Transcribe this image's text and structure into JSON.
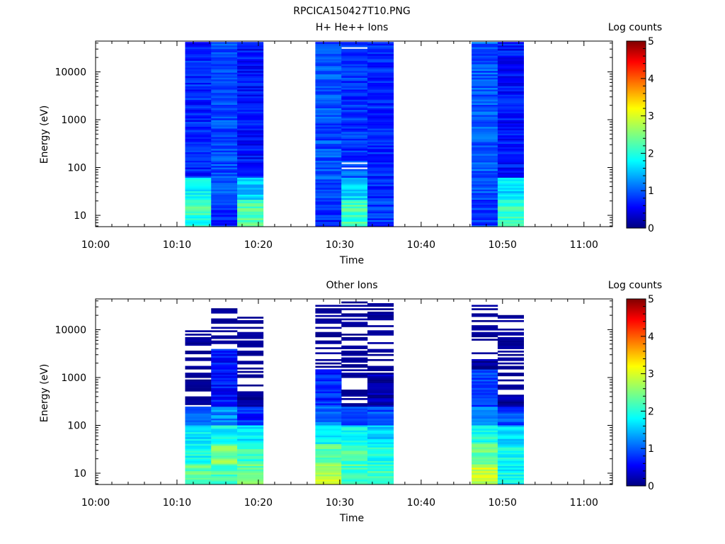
{
  "figure": {
    "title": "RPCICA150427T10.PNG"
  },
  "chart_data": [
    {
      "type": "heatmap",
      "title": "H+ He++ Ions",
      "xlabel": "Time",
      "ylabel": "Energy (eV)",
      "x_ticks": [
        "10:00",
        "10:10",
        "10:20",
        "10:30",
        "10:40",
        "10:50",
        "11:00"
      ],
      "x_range_min": [
        0,
        63.5
      ],
      "y_ticks": [
        "10",
        "100",
        "1000",
        "10000"
      ],
      "y_scale": "log",
      "y_range_ev": [
        5.8,
        44000
      ],
      "colorbar": {
        "label": "Log counts",
        "ticks": [
          "0",
          "1",
          "2",
          "3",
          "4",
          "5"
        ],
        "range": [
          0,
          5
        ]
      },
      "columns": [
        {
          "start": 11.0,
          "end": 14.2,
          "seed": 11,
          "sections": [
            [
              5.8,
              10,
              2.0
            ],
            [
              10,
              22,
              2.2
            ],
            [
              22,
              60,
              1.9
            ],
            [
              60,
              44000,
              0.8
            ]
          ],
          "gaps": []
        },
        {
          "start": 14.2,
          "end": 17.4,
          "seed": 12,
          "sections": [
            [
              5.8,
              22,
              0.8
            ],
            [
              22,
              45000,
              1.0
            ]
          ],
          "gaps": []
        },
        {
          "start": 17.4,
          "end": 20.6,
          "seed": 13,
          "sections": [
            [
              5.8,
              22,
              2.3
            ],
            [
              22,
              60,
              1.6
            ],
            [
              60,
              44000,
              0.7
            ]
          ],
          "gaps": []
        },
        {
          "start": 27.0,
          "end": 30.2,
          "seed": 14,
          "sections": [
            [
              5.8,
              22,
              0.8
            ],
            [
              22,
              44000,
              1.0
            ]
          ],
          "gaps": []
        },
        {
          "start": 30.2,
          "end": 33.4,
          "seed": 15,
          "sections": [
            [
              5.8,
              22,
              2.2
            ],
            [
              22,
              60,
              1.7
            ],
            [
              60,
              110,
              1.1
            ],
            [
              110,
              44000,
              0.85
            ]
          ],
          "gaps": [
            100,
            120,
            33000
          ]
        },
        {
          "start": 33.4,
          "end": 36.6,
          "seed": 16,
          "sections": [
            [
              5.8,
              22,
              0.9
            ],
            [
              22,
              44000,
              0.8
            ]
          ],
          "gaps": []
        },
        {
          "start": 46.2,
          "end": 49.4,
          "seed": 17,
          "sections": [
            [
              5.8,
              22,
              0.9
            ],
            [
              22,
              44000,
              1.05
            ]
          ],
          "gaps": []
        },
        {
          "start": 49.4,
          "end": 52.6,
          "seed": 18,
          "sections": [
            [
              5.8,
              22,
              2.1
            ],
            [
              22,
              60,
              1.7
            ],
            [
              60,
              44000,
              0.7
            ]
          ],
          "gaps": []
        }
      ]
    },
    {
      "type": "heatmap",
      "title": "Other Ions",
      "xlabel": "Time",
      "ylabel": "Energy (eV)",
      "x_ticks": [
        "10:00",
        "10:10",
        "10:20",
        "10:30",
        "10:40",
        "10:50",
        "11:00"
      ],
      "x_range_min": [
        0,
        63.5
      ],
      "y_ticks": [
        "10",
        "100",
        "1000",
        "10000"
      ],
      "y_scale": "log",
      "y_range_ev": [
        5.8,
        44000
      ],
      "colorbar": {
        "label": "Log counts",
        "ticks": [
          "0",
          "1",
          "2",
          "3",
          "4",
          "5"
        ],
        "range": [
          0,
          5
        ]
      },
      "columns": [
        {
          "start": 11.0,
          "end": 14.2,
          "seed": 21,
          "sections": [
            [
              5.8,
              16,
              2.3
            ],
            [
              16,
              40,
              1.9
            ],
            [
              40,
              100,
              1.8
            ],
            [
              100,
              250,
              1.0
            ],
            [
              250,
              10000,
              0.1
            ]
          ],
          "sparse_above": 250,
          "top": 10000
        },
        {
          "start": 14.2,
          "end": 17.4,
          "seed": 22,
          "sections": [
            [
              5.8,
              16,
              2.3
            ],
            [
              16,
              40,
              2.5
            ],
            [
              40,
              100,
              1.9
            ],
            [
              100,
              250,
              1.3
            ],
            [
              250,
              4000,
              0.7
            ],
            [
              4000,
              30000,
              0.1
            ]
          ],
          "sparse_above": 4000,
          "top": 31000
        },
        {
          "start": 17.4,
          "end": 20.6,
          "seed": 23,
          "sections": [
            [
              5.8,
              16,
              2.4
            ],
            [
              16,
              40,
              2.1
            ],
            [
              40,
              100,
              1.8
            ],
            [
              100,
              250,
              0.8
            ],
            [
              250,
              23000,
              0.1
            ]
          ],
          "sparse_above": 400,
          "top": 23000
        },
        {
          "start": 27.0,
          "end": 30.2,
          "seed": 24,
          "sections": [
            [
              5.8,
              16,
              2.8
            ],
            [
              16,
              40,
              2.3
            ],
            [
              40,
              100,
              1.9
            ],
            [
              100,
              250,
              1.2
            ],
            [
              250,
              1500,
              0.8
            ],
            [
              1500,
              33000,
              0.1
            ]
          ],
          "sparse_above": 1500,
          "top": 33000
        },
        {
          "start": 30.2,
          "end": 33.4,
          "seed": 25,
          "sections": [
            [
              5.8,
              40,
              2.2
            ],
            [
              40,
              100,
              1.9
            ],
            [
              100,
              250,
              1.0
            ],
            [
              250,
              40000,
              0.2
            ]
          ],
          "sparse_above": 250,
          "top": 40000
        },
        {
          "start": 33.4,
          "end": 36.6,
          "seed": 26,
          "sections": [
            [
              5.8,
              16,
              2.2
            ],
            [
              16,
              40,
              2.0
            ],
            [
              40,
              100,
              1.6
            ],
            [
              100,
              250,
              1.0
            ],
            [
              250,
              38000,
              0.2
            ]
          ],
          "sparse_above": 1200,
          "top": 38000
        },
        {
          "start": 46.2,
          "end": 49.4,
          "seed": 27,
          "sections": [
            [
              5.8,
              16,
              2.9
            ],
            [
              16,
              40,
              2.4
            ],
            [
              40,
              100,
              2.0
            ],
            [
              100,
              250,
              1.2
            ],
            [
              250,
              1500,
              0.9
            ],
            [
              1500,
              43000,
              0.1
            ]
          ],
          "sparse_above": 2500,
          "top": 43000
        },
        {
          "start": 49.4,
          "end": 52.6,
          "seed": 28,
          "sections": [
            [
              5.8,
              40,
              1.9
            ],
            [
              40,
              100,
              1.7
            ],
            [
              100,
              250,
              1.0
            ],
            [
              250,
              20000,
              0.2
            ]
          ],
          "sparse_above": 400,
          "top": 20000
        }
      ]
    }
  ]
}
